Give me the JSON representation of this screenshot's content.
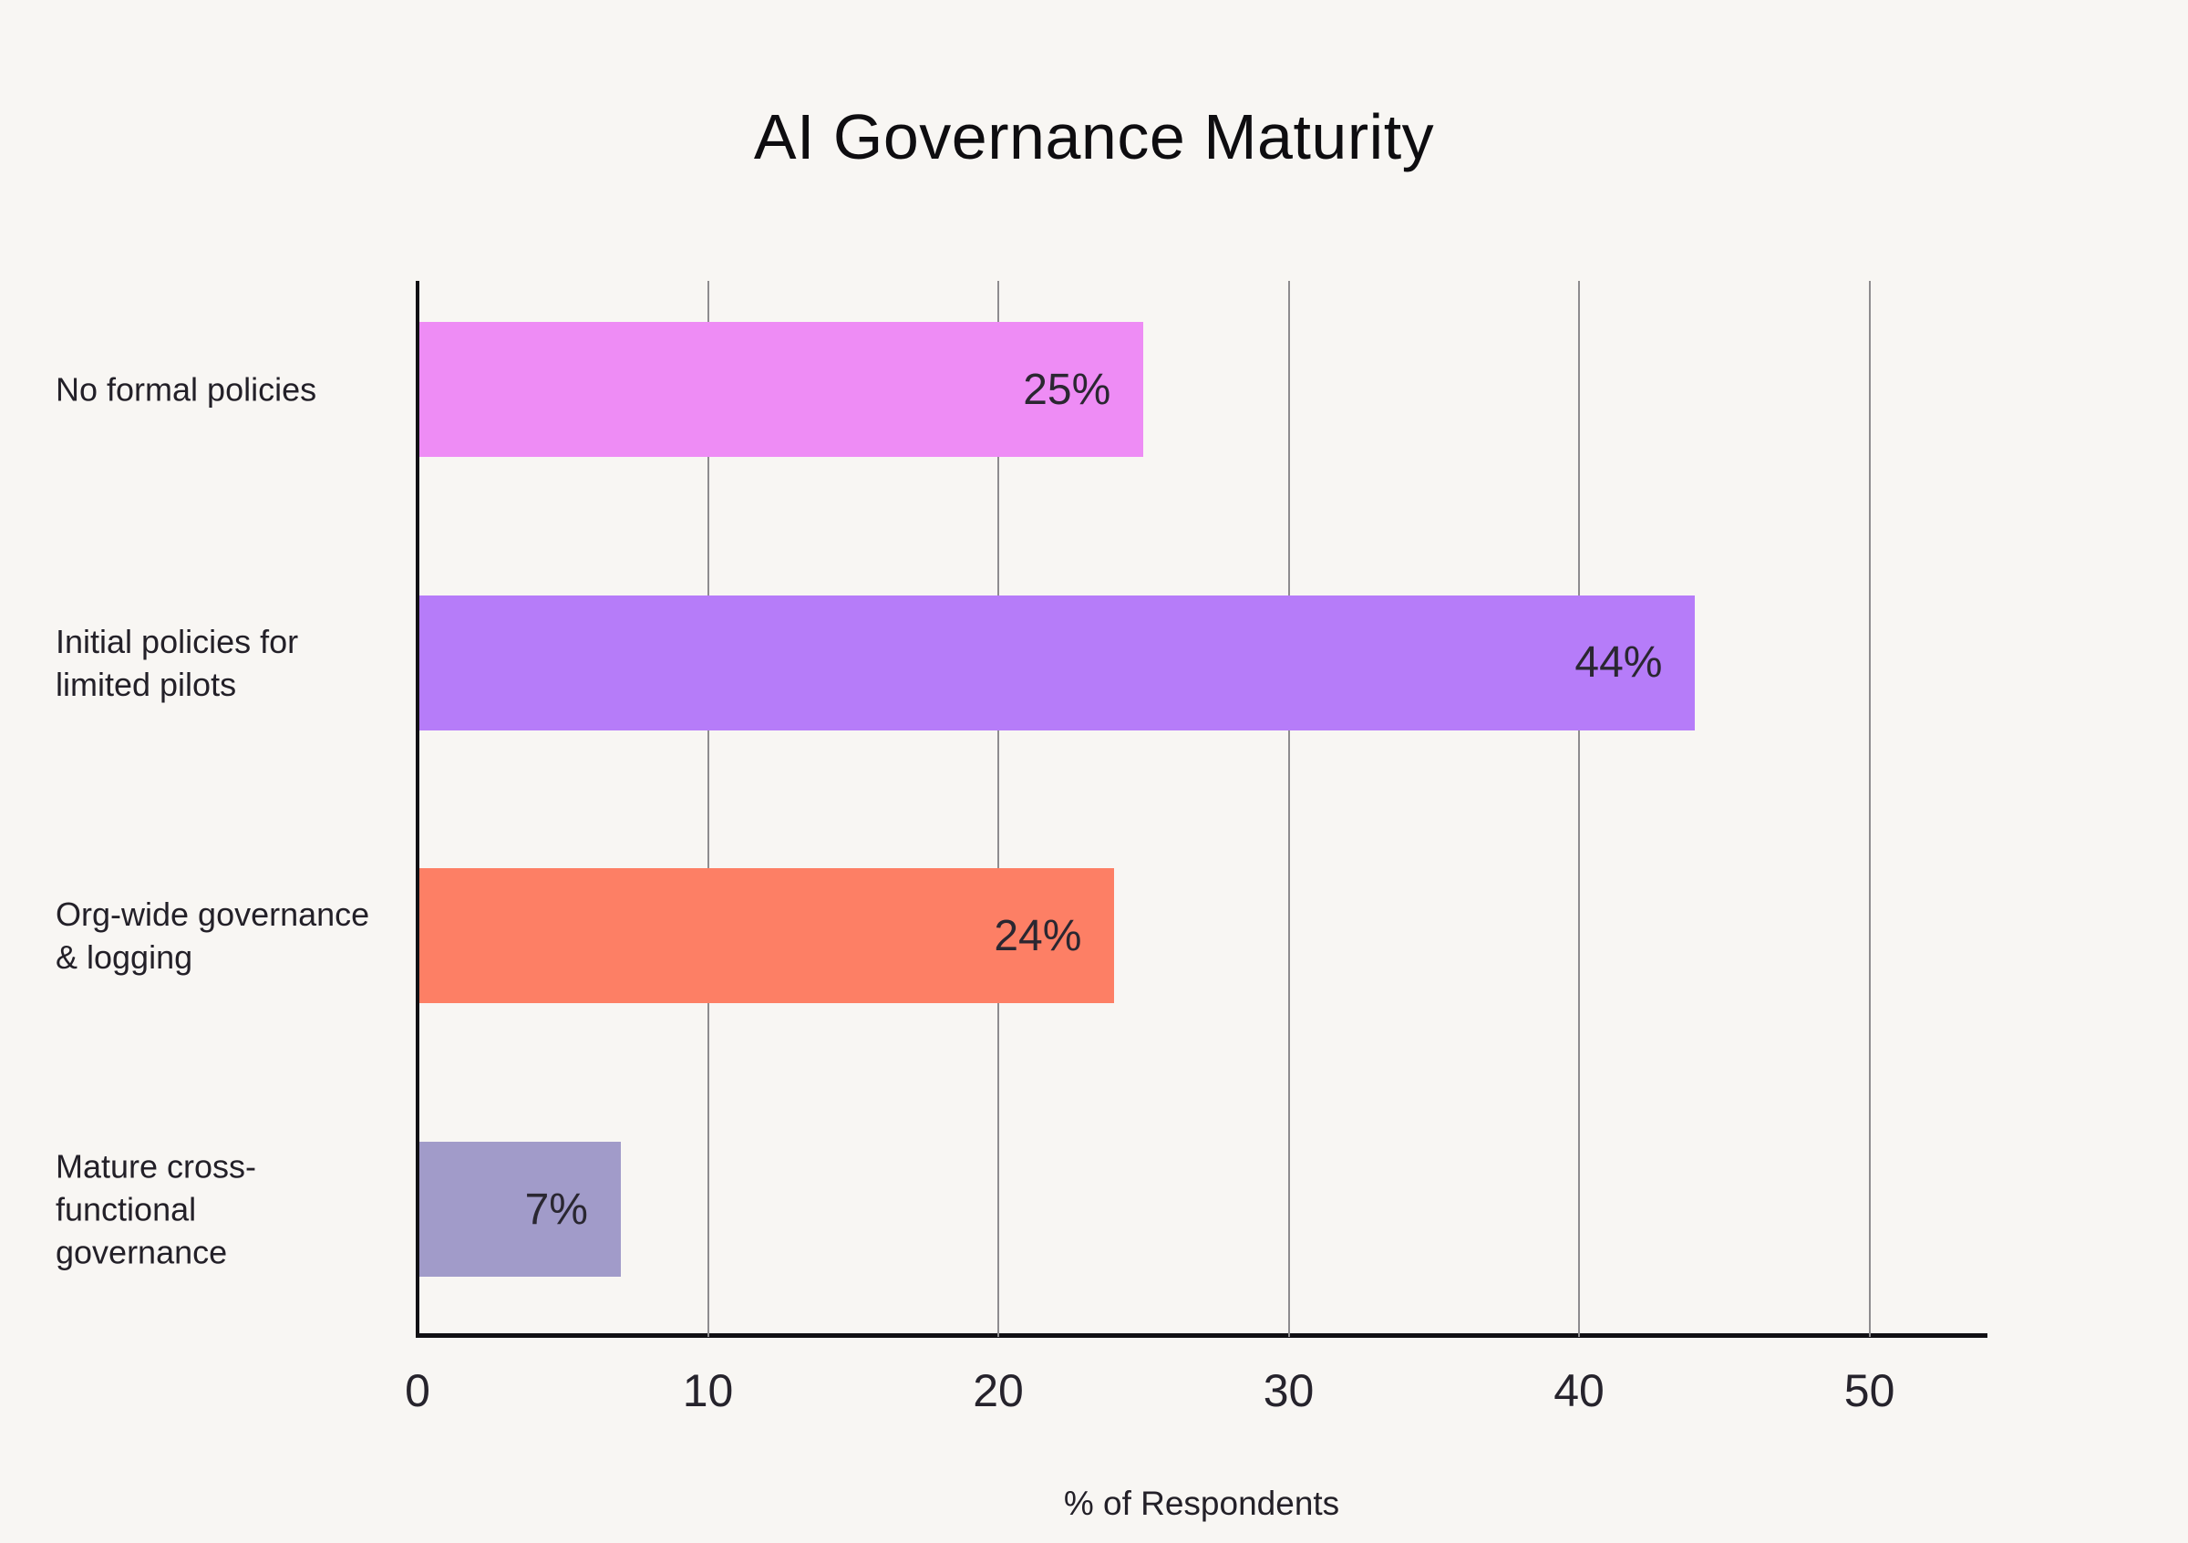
{
  "title": "AI Governance Maturity",
  "x_axis_label": "% of Respondents",
  "colors": {
    "background": "#F8F6F3",
    "gridline": "#8E8C8F",
    "axis_spine": "#111014",
    "title_text": "#0e0d10",
    "label_text": "#232028",
    "value_text": "#2a2731"
  },
  "chart_data": {
    "type": "bar",
    "orientation": "horizontal",
    "title": "AI Governance Maturity",
    "xlabel": "% of Respondents",
    "ylabel": "",
    "categories": [
      "No formal policies",
      "Initial policies for limited pilots",
      "Org-wide governance & logging",
      "Mature cross-functional governance"
    ],
    "category_display_lines": [
      [
        "No formal policies"
      ],
      [
        "Initial policies for",
        "limited pilots"
      ],
      [
        "Org-wide governance",
        "& logging"
      ],
      [
        "Mature cross-",
        "functional",
        "governance"
      ]
    ],
    "values": [
      25,
      44,
      24,
      7
    ],
    "value_labels": [
      "25%",
      "44%",
      "24%",
      "7%"
    ],
    "bar_colors": [
      "#EE8CF5",
      "#B67CF9",
      "#FD7F65",
      "#A19BC9"
    ],
    "xlim": [
      0,
      54
    ],
    "xticks": [
      0,
      10,
      20,
      30,
      40,
      50
    ],
    "grid": "vertical-gridlines-on",
    "legend": "none"
  }
}
